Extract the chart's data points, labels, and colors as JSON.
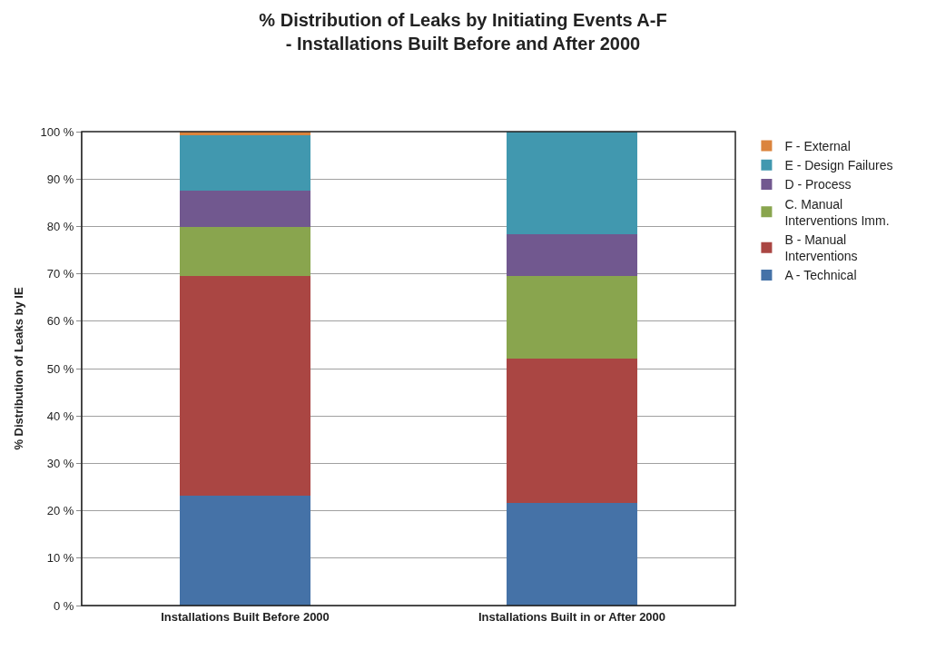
{
  "chart_data": {
    "type": "bar",
    "title": "% Distribution of Leaks by Initiating Events A-F\n- Installations Built Before and After 2000",
    "ylabel": "% Distribution of Leaks by IE",
    "categories": [
      "Installations Built Before 2000",
      "Installations Built in or After 2000"
    ],
    "stacked": true,
    "series": [
      {
        "name": "A - Technical",
        "color": "#4572a7",
        "values": [
          23.2,
          21.6
        ]
      },
      {
        "name": "B - Manual Interventions",
        "color": "#aa4643",
        "values": [
          46.3,
          30.5
        ]
      },
      {
        "name": "C. Manual Interventions Imm.",
        "color": "#89a54e",
        "values": [
          10.4,
          17.5
        ]
      },
      {
        "name": "D - Process",
        "color": "#71588f",
        "values": [
          7.6,
          8.7
        ]
      },
      {
        "name": "E - Design Failures",
        "color": "#4198af",
        "values": [
          11.7,
          21.7
        ]
      },
      {
        "name": "F - External",
        "color": "#db843d",
        "values": [
          0.8,
          0
        ]
      }
    ],
    "ylim": [
      0,
      100
    ],
    "yticks": [
      {
        "value": 0,
        "label": "0 %"
      },
      {
        "value": 10,
        "label": "10 %"
      },
      {
        "value": 20,
        "label": "20 %"
      },
      {
        "value": 30,
        "label": "30 %"
      },
      {
        "value": 40,
        "label": "40 %"
      },
      {
        "value": 50,
        "label": "50 %"
      },
      {
        "value": 60,
        "label": "60 %"
      },
      {
        "value": 70,
        "label": "70 %"
      },
      {
        "value": 80,
        "label": "80 %"
      },
      {
        "value": 90,
        "label": "90 %"
      },
      {
        "value": 100,
        "label": "100 %"
      }
    ],
    "grid": "y",
    "legend": "right"
  }
}
